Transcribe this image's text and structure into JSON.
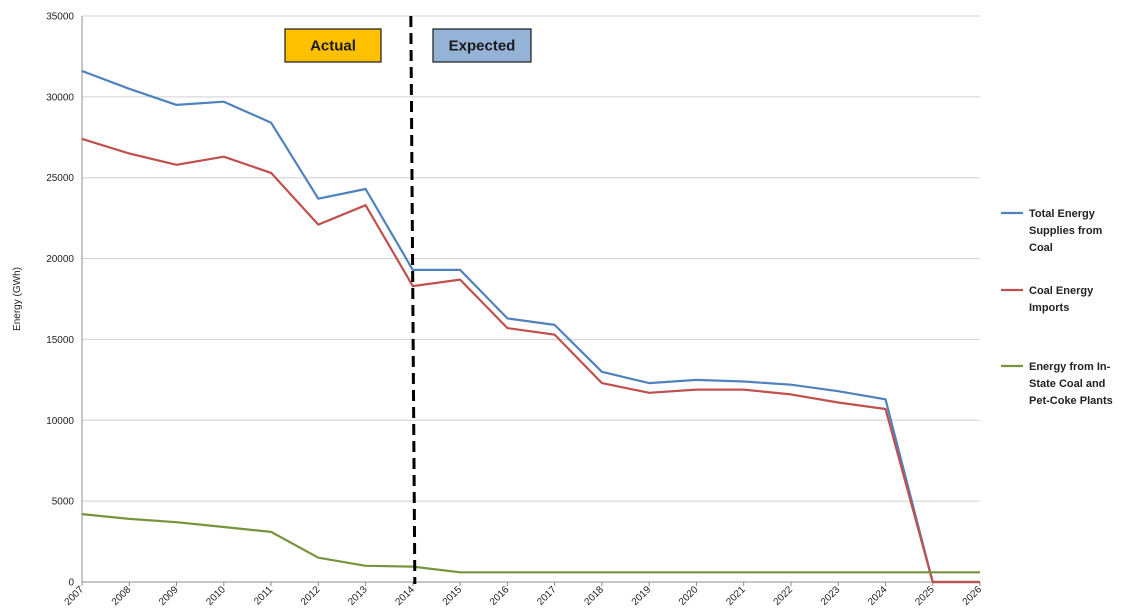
{
  "chart_data": {
    "type": "line",
    "title": "",
    "xlabel": "",
    "ylabel": "Energy (GWh)",
    "ylim": [
      0,
      35000
    ],
    "yticks": [
      0,
      5000,
      10000,
      15000,
      20000,
      25000,
      30000,
      35000
    ],
    "x": [
      2007,
      2008,
      2009,
      2010,
      2011,
      2012,
      2013,
      2014,
      2015,
      2016,
      2017,
      2018,
      2019,
      2020,
      2021,
      2022,
      2023,
      2024,
      2025,
      2026
    ],
    "grid": "horizontal",
    "legend_position": "right",
    "series": [
      {
        "name": "Total Energy Supplies from Coal",
        "legend_lines": [
          "Total Energy",
          "Supplies from",
          "Coal"
        ],
        "color": "#4f81bd",
        "values": [
          31600,
          30500,
          29500,
          29700,
          28400,
          23700,
          24300,
          19300,
          19300,
          16300,
          15900,
          13000,
          12300,
          12500,
          12400,
          12200,
          11800,
          11300,
          0,
          0
        ]
      },
      {
        "name": "Coal Energy Imports",
        "legend_lines": [
          "Coal Energy",
          "Imports"
        ],
        "color": "#c0504d",
        "values": [
          27400,
          26500,
          25800,
          26300,
          25300,
          22100,
          23300,
          18300,
          18700,
          15700,
          15300,
          12300,
          11700,
          11900,
          11900,
          11600,
          11100,
          10700,
          0,
          0
        ]
      },
      {
        "name": "Energy from In-State Coal and Pet-Coke Plants",
        "legend_lines": [
          "Energy from In-",
          "State Coal and",
          "Pet-Coke Plants"
        ],
        "color": "#77933c",
        "values": [
          4200,
          3900,
          3700,
          3400,
          3100,
          1500,
          1000,
          950,
          600,
          600,
          600,
          600,
          600,
          600,
          600,
          600,
          600,
          600,
          600,
          600
        ]
      }
    ],
    "divider": {
      "x": 2014,
      "style": "dashed"
    },
    "annotations": [
      {
        "text": "Actual",
        "fill": "#ffc000"
      },
      {
        "text": "Expected",
        "fill": "#95b3d7"
      }
    ]
  }
}
